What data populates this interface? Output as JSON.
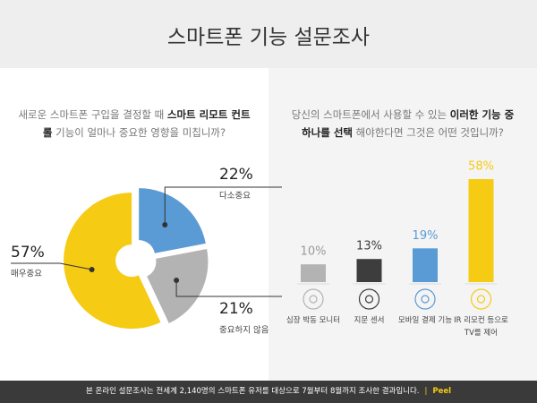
{
  "header": {
    "title": "스마트폰 기능 설문조사"
  },
  "chart_data": [
    {
      "type": "pie",
      "question": [
        "새로운 스마트폰 구입을 결정할 때 ",
        "스마트 리모트 컨트롤",
        " 기능이 얼마나 중요한 영향을 미칩니까?"
      ],
      "categories": [
        "다소중요",
        "중요하지 않음",
        "매우중요"
      ],
      "values": [
        22,
        21,
        57
      ],
      "value_labels": [
        "22%",
        "21%",
        "57%"
      ],
      "colors": [
        "#5b9bd5",
        "#b3b3b3",
        "#f5cb14"
      ]
    },
    {
      "type": "bar",
      "question": [
        "당신의 스마트폰에서 사용할 수 있는 ",
        "이러한 기능 중 하나를 선택",
        " 해야한다면 그것은 어떤 것입니까?"
      ],
      "categories": [
        "심장 박동 모니터",
        "지문 센서",
        "모바일 결제 기능",
        "IR 리모컨 등으로 TV를 제어"
      ],
      "values": [
        10,
        13,
        19,
        58
      ],
      "value_labels": [
        "10%",
        "13%",
        "19%",
        "58%"
      ],
      "colors": [
        "#b3b3b3",
        "#3d3d3d",
        "#5b9bd5",
        "#f5cb14"
      ]
    }
  ],
  "footer": {
    "note": "본 온라인 설문조사는 전세계 2,140명의 스마트폰 유저를 대상으로 7월부터 8월까지 조사한 결과입니다.",
    "brand": "Peel"
  }
}
